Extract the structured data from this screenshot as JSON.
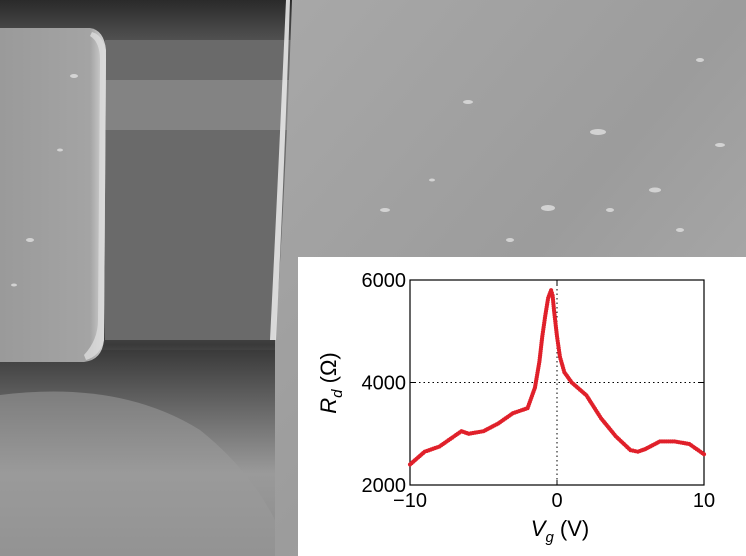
{
  "chart_data": {
    "type": "scatter",
    "xlabel": "V_g (V)",
    "xlabel_main": "V",
    "xlabel_sub": "g",
    "xlabel_unit": " (V)",
    "ylabel": "R_d (Ω)",
    "ylabel_main": "R",
    "ylabel_sub": "d",
    "ylabel_unit": " (Ω)",
    "xlim": [
      -10,
      10
    ],
    "ylim": [
      2000,
      6000
    ],
    "xticks": [
      -10,
      0,
      10
    ],
    "xtick_labels": [
      "−10",
      "0",
      "10"
    ],
    "yticks": [
      2000,
      4000,
      6000
    ],
    "ytick_labels": [
      "2000",
      "4000",
      "6000"
    ],
    "grid": "dotted at x=0 and y=4000",
    "marker_color": "#e0202a",
    "series": [
      {
        "x": [
          -10,
          -9,
          -8,
          -7,
          -6.5,
          -6,
          -5,
          -4,
          -3,
          -2,
          -1.5,
          -1.2,
          -1.0,
          -0.8,
          -0.6,
          -0.4,
          -0.3,
          -0.2,
          0,
          0.2,
          0.5,
          1,
          2,
          3,
          4,
          5,
          5.5,
          6,
          7,
          8,
          9,
          10
        ],
        "y": [
          2400,
          2650,
          2750,
          2950,
          3050,
          3000,
          3050,
          3200,
          3400,
          3500,
          3900,
          4400,
          4900,
          5300,
          5650,
          5800,
          5700,
          5400,
          4900,
          4500,
          4200,
          4000,
          3750,
          3300,
          2950,
          2680,
          2650,
          2700,
          2850,
          2850,
          2800,
          2600
        ]
      }
    ]
  }
}
